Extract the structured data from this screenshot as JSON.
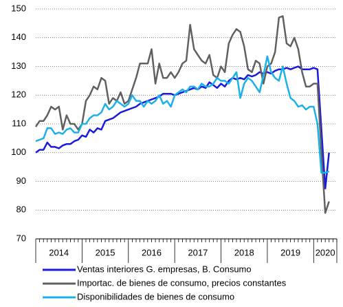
{
  "chart_data": {
    "type": "line",
    "x": [
      2014,
      2014.083,
      2014.167,
      2014.25,
      2014.333,
      2014.417,
      2014.5,
      2014.583,
      2014.667,
      2014.75,
      2014.833,
      2014.917,
      2015,
      2015.083,
      2015.167,
      2015.25,
      2015.333,
      2015.417,
      2015.5,
      2015.583,
      2015.667,
      2015.75,
      2015.833,
      2015.917,
      2016,
      2016.083,
      2016.167,
      2016.25,
      2016.333,
      2016.417,
      2016.5,
      2016.583,
      2016.667,
      2016.75,
      2016.833,
      2016.917,
      2017,
      2017.083,
      2017.167,
      2017.25,
      2017.333,
      2017.417,
      2017.5,
      2017.583,
      2017.667,
      2017.75,
      2017.833,
      2017.917,
      2018,
      2018.083,
      2018.167,
      2018.25,
      2018.333,
      2018.417,
      2018.5,
      2018.583,
      2018.667,
      2018.75,
      2018.833,
      2018.917,
      2019,
      2019.083,
      2019.167,
      2019.25,
      2019.333,
      2019.417,
      2019.5,
      2019.583,
      2019.667,
      2019.75,
      2019.833,
      2019.917,
      2020,
      2020.083,
      2020.167,
      2020.25,
      2020.333
    ],
    "series": [
      {
        "name": "Ventas interiores G. empresas, B. Consumo",
        "color": "#1a1adc",
        "values": [
          100,
          101,
          101,
          103.5,
          102,
          102,
          101.5,
          102.5,
          103,
          103,
          104,
          104.5,
          106,
          105.5,
          108,
          107,
          108.5,
          108,
          111,
          111.5,
          112,
          113,
          114,
          114.5,
          115,
          115.5,
          116,
          117,
          117.5,
          118,
          118.5,
          119,
          119.5,
          120.5,
          120.5,
          120.5,
          120,
          120.5,
          121,
          121.5,
          122,
          122.5,
          122,
          123,
          122.5,
          124.5,
          123.5,
          122.5,
          124,
          123,
          125,
          126,
          125.5,
          126,
          125.5,
          127,
          126.5,
          127,
          128,
          127.5,
          128,
          127.5,
          128.5,
          129,
          129,
          129.5,
          129,
          129.5,
          130,
          129,
          129,
          129,
          129.5,
          129,
          108,
          87.5,
          100
        ]
      },
      {
        "name": "Importac. de bienes de consumo, precios constantes",
        "color": "#606060",
        "values": [
          109,
          111,
          111,
          113,
          116,
          115,
          116,
          108,
          113,
          110,
          110,
          108,
          110,
          118,
          120,
          123,
          122,
          126,
          125,
          117,
          119,
          118,
          121,
          117,
          118,
          122,
          126,
          131,
          131,
          131,
          136,
          124,
          131,
          126,
          126,
          128,
          126,
          128,
          131,
          132,
          144.5,
          136,
          134,
          132,
          131,
          134,
          127,
          126,
          130,
          128,
          138,
          141,
          143,
          142,
          137,
          129,
          128,
          132,
          131,
          124,
          130,
          131,
          135,
          147,
          147.5,
          138,
          137,
          140,
          136,
          128,
          123,
          123,
          124,
          124,
          100,
          79,
          83
        ]
      },
      {
        "name": "Disponibilidades de bienes de consumo",
        "color": "#1ab0ea",
        "values": [
          104,
          104.5,
          105,
          108.5,
          108.5,
          106.5,
          107,
          106.5,
          108,
          108.5,
          107,
          107,
          110,
          110,
          112,
          113,
          113,
          114,
          117,
          115,
          116,
          118,
          117,
          116,
          117,
          120,
          118,
          118,
          116,
          118,
          117,
          118,
          120,
          117,
          118,
          116,
          120,
          121,
          122,
          121,
          123,
          123,
          122,
          124,
          123,
          123,
          124,
          126,
          125,
          125,
          124,
          126,
          128,
          119,
          124,
          126,
          125,
          123,
          121,
          127,
          133.5,
          128,
          126,
          125,
          130,
          124,
          119,
          118,
          116,
          116.5,
          115,
          116,
          116,
          110,
          93,
          93,
          93.5
        ]
      }
    ],
    "xlim": [
      2014,
      2020.5
    ],
    "xticks": [
      {
        "value": 2014.5,
        "label": "2014"
      },
      {
        "value": 2015.5,
        "label": "2015"
      },
      {
        "value": 2016.5,
        "label": "2016"
      },
      {
        "value": 2017.5,
        "label": "2017"
      },
      {
        "value": 2018.5,
        "label": "2018"
      },
      {
        "value": 2019.5,
        "label": "2019"
      },
      {
        "value": 2020.25,
        "label": "2020"
      }
    ],
    "ylim": [
      70,
      150
    ],
    "yticks": [
      70,
      80,
      90,
      100,
      110,
      120,
      130,
      140,
      150
    ],
    "grid": true,
    "legend": "bottom"
  }
}
